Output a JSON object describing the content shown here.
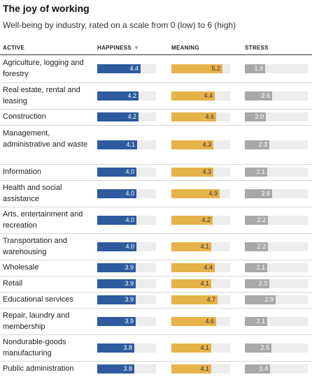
{
  "title": "The joy of working",
  "subtitle": "Well-being by industry, rated on a scale from 0 (low) to 6 (high)",
  "columns": {
    "industry": "ACTIVE",
    "happiness": "HAPPINESS",
    "meaning": "MEANING",
    "stress": "STRESS"
  },
  "sort_icon": "sort-descending-icon",
  "colors": {
    "happiness": "#2d5b9e",
    "meaning": "#e6b24a",
    "stress": "#a8a8a8",
    "track": "#ededed"
  },
  "chart_data": {
    "type": "bar",
    "title": "The joy of working",
    "subtitle": "Well-being by industry, rated on a scale from 0 (low) to 6 (high)",
    "xlim": [
      0,
      6
    ],
    "categories": [
      "Agriculture, logging and forestry",
      "Real estate, rental and leasing",
      "Construction",
      "Management, administrative and waste",
      "Information",
      "Health and social assistance",
      "Arts, entertainment and recreation",
      "Transportation and warehousing",
      "Wholesale",
      "Retail",
      "Educational services",
      "Repair, laundry and membership",
      "Nondurable-goods manufacturing",
      "Public administration"
    ],
    "series": [
      {
        "name": "HAPPINESS",
        "values": [
          4.4,
          4.2,
          4.2,
          4.1,
          4.0,
          4.0,
          4.0,
          4.0,
          3.9,
          3.9,
          3.9,
          3.9,
          3.8,
          3.8
        ]
      },
      {
        "name": "MEANING",
        "values": [
          5.2,
          4.4,
          4.6,
          4.3,
          4.3,
          4.9,
          4.2,
          4.1,
          4.4,
          4.1,
          4.7,
          4.6,
          4.1,
          4.1
        ]
      },
      {
        "name": "STRESS",
        "values": [
          1.9,
          2.6,
          2.0,
          2.3,
          2.1,
          2.6,
          2.2,
          2.2,
          2.1,
          2.3,
          2.9,
          2.1,
          2.5,
          2.4
        ]
      }
    ],
    "legend": "none",
    "grid": false
  }
}
